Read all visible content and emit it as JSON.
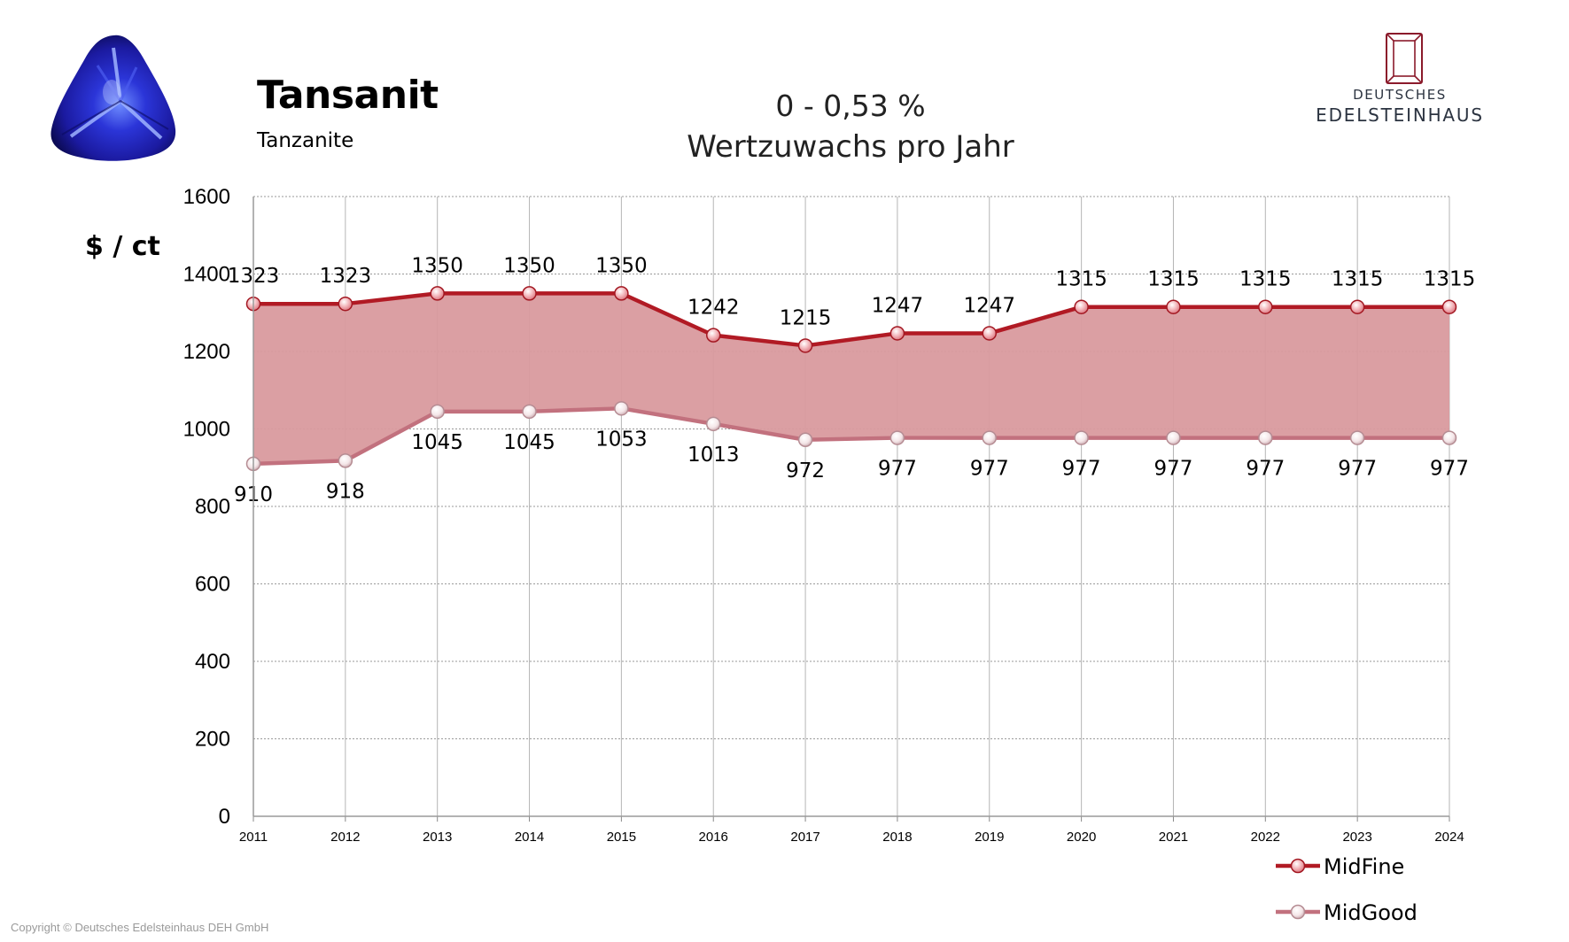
{
  "header": {
    "title": "Tansanit",
    "subtitle": "Tanzanite",
    "growth_range": "0 - 0,53 %",
    "growth_label": "Wertzuwachs pro Jahr"
  },
  "logo": {
    "line1": "DEUTSCHES",
    "line2": "EDELSTEINHAUS",
    "color": "#8b1a2b"
  },
  "footer": {
    "copyright": "Copyright © Deutsches Edelsteinhaus DEH GmbH"
  },
  "icons": {
    "gem": "tanzanite-trillion-gem-icon",
    "logo": "gemstone-outline-logo-icon"
  },
  "chart_data": {
    "type": "area",
    "categories": [
      "2011",
      "2012",
      "2013",
      "2014",
      "2015",
      "2016",
      "2017",
      "2018",
      "2019",
      "2020",
      "2021",
      "2022",
      "2023",
      "2024"
    ],
    "ylabel": "$ / ct",
    "xlabel": "",
    "ylim": [
      0,
      1600
    ],
    "yticks": [
      "0",
      "200",
      "400",
      "600",
      "800",
      "1000",
      "1200",
      "1400",
      "1600"
    ],
    "grid": true,
    "legend_position": "bottom-right",
    "series": [
      {
        "name": "MidFine",
        "values": [
          1323,
          1323,
          1350,
          1350,
          1350,
          1242,
          1215,
          1247,
          1247,
          1315,
          1315,
          1315,
          1315,
          1315
        ],
        "labels": [
          "1323",
          "1323",
          "1350",
          "1350",
          "1350",
          "1242",
          "1215",
          "1247",
          "1247",
          "1315",
          "1315",
          "1315",
          "1315",
          "1315"
        ],
        "color": "#b11a24"
      },
      {
        "name": "MidGood",
        "values": [
          910,
          918,
          1045,
          1045,
          1053,
          1013,
          972,
          977,
          977,
          977,
          977,
          977,
          977,
          977
        ],
        "labels": [
          "910",
          "918",
          "1045",
          "1045",
          "1053",
          "1013",
          "972",
          "977",
          "977",
          "977",
          "977",
          "977",
          "977",
          "977"
        ],
        "color": "#c2717e"
      }
    ],
    "fill_color": "#d99a9e"
  }
}
